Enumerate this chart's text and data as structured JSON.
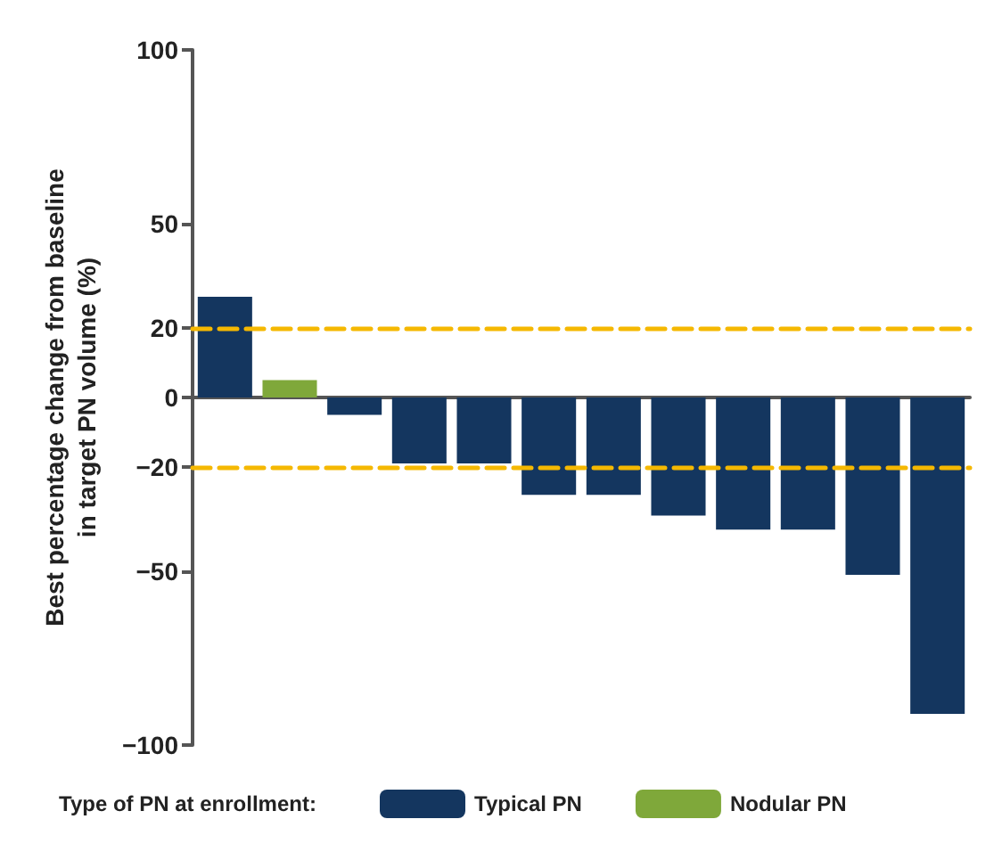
{
  "chart_data": {
    "type": "bar",
    "ylabel": "Best percentage change from baseline\nin target PN volume (%)",
    "legend_title": "Type of PN at enrollment:",
    "categories": [
      null,
      null,
      null,
      null,
      null,
      null,
      null,
      null,
      null,
      null,
      null,
      null
    ],
    "stacked": true,
    "series": [
      {
        "name": "Typical PN",
        "color": "#14365f",
        "values": [
          29,
          null,
          -5,
          -19,
          -19,
          -28,
          -28,
          -34,
          -38,
          -38,
          -51,
          -91
        ]
      },
      {
        "name": "Nodular PN",
        "color": "#7fa83a",
        "values": [
          null,
          5,
          null,
          null,
          null,
          null,
          null,
          null,
          null,
          null,
          null,
          null
        ]
      }
    ],
    "ylim": [
      -100,
      100
    ],
    "yticks": [
      -100,
      -50,
      -20,
      0,
      20,
      50,
      100
    ],
    "ref_lines": [
      {
        "axis": "y",
        "value": 20,
        "color": "#f5b800",
        "line_style": "dashed"
      },
      {
        "axis": "y",
        "value": -20,
        "color": "#f5b800",
        "line_style": "dashed"
      }
    ],
    "grid": false,
    "legend": "bottom"
  }
}
